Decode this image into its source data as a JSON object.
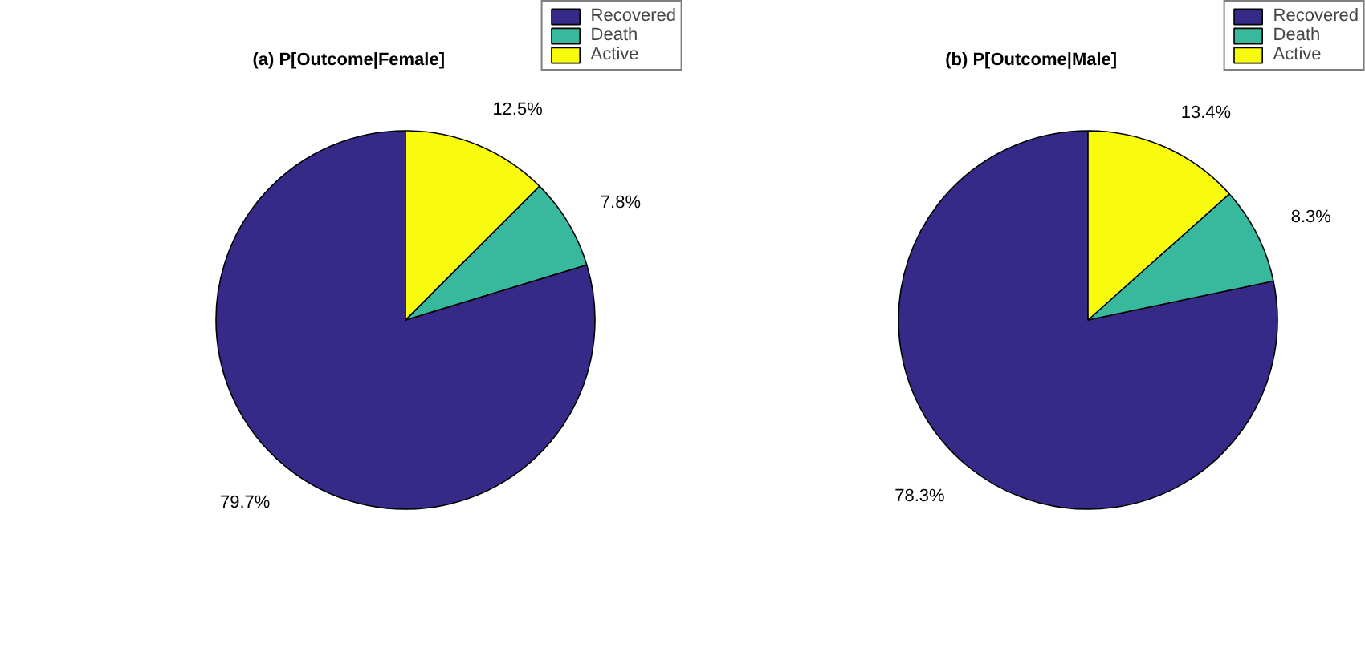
{
  "chart_data": [
    {
      "type": "pie",
      "title": "(a) P[Outcome|Female]",
      "categories": [
        "Recovered",
        "Death",
        "Active"
      ],
      "values": [
        79.7,
        7.8,
        12.5
      ],
      "colors": [
        "#352a87",
        "#38b99e",
        "#f9fb0e"
      ],
      "value_labels": [
        "79.7%",
        "7.8%",
        "12.5%"
      ],
      "legend": "top right"
    },
    {
      "type": "pie",
      "title": "(b) P[Outcome|Male]",
      "categories": [
        "Recovered",
        "Death",
        "Active"
      ],
      "values": [
        78.3,
        8.3,
        13.4
      ],
      "colors": [
        "#352a87",
        "#38b99e",
        "#f9fb0e"
      ],
      "value_labels": [
        "78.3%",
        "8.3%",
        "13.4%"
      ],
      "legend": "top right"
    }
  ]
}
